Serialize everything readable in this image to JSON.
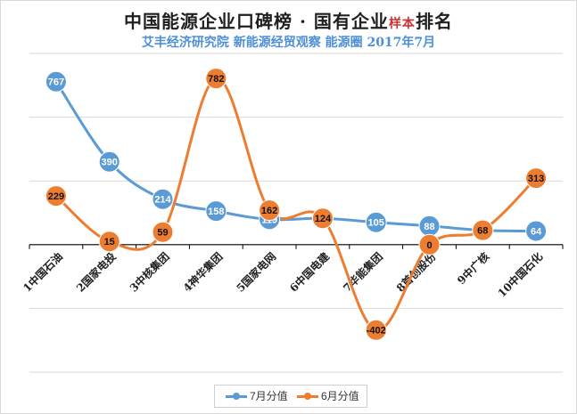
{
  "header": {
    "title_main": "中国能源企业口碑榜 · 国有企业",
    "title_small": "样本",
    "title_tail": "排名",
    "subtitle": "艾丰经济研究院 新能源经贸观察 能源圈 2017年7月"
  },
  "colors": {
    "jul": "#5b9bd5",
    "jun": "#ed7d31",
    "grid": "#d9d9d9",
    "axis": "#000000"
  },
  "chart_data": {
    "type": "line",
    "title": "中国能源企业口碑榜 · 国有企业样本排名",
    "subtitle": "艾丰经济研究院 新能源经贸观察 能源圈 2017年7月",
    "categories": [
      "1中国石油",
      "2国家电投",
      "3中核集团",
      "4神华集团",
      "5国家电网",
      "6中国电建",
      "7华能集团",
      "8首创股份",
      "9中广核",
      "10中国石化"
    ],
    "series": [
      {
        "name": "7月分值",
        "color": "#5b9bd5",
        "values": [
          767,
          390,
          214,
          158,
          119,
          124,
          105,
          88,
          68,
          64
        ]
      },
      {
        "name": "6月分值",
        "color": "#ed7d31",
        "values": [
          229,
          15,
          59,
          782,
          162,
          124,
          -402,
          0,
          68,
          313
        ]
      }
    ],
    "xlabel": "",
    "ylabel": "",
    "ylim": [
      -600,
      900
    ],
    "grid": true,
    "legend_position": "bottom"
  }
}
